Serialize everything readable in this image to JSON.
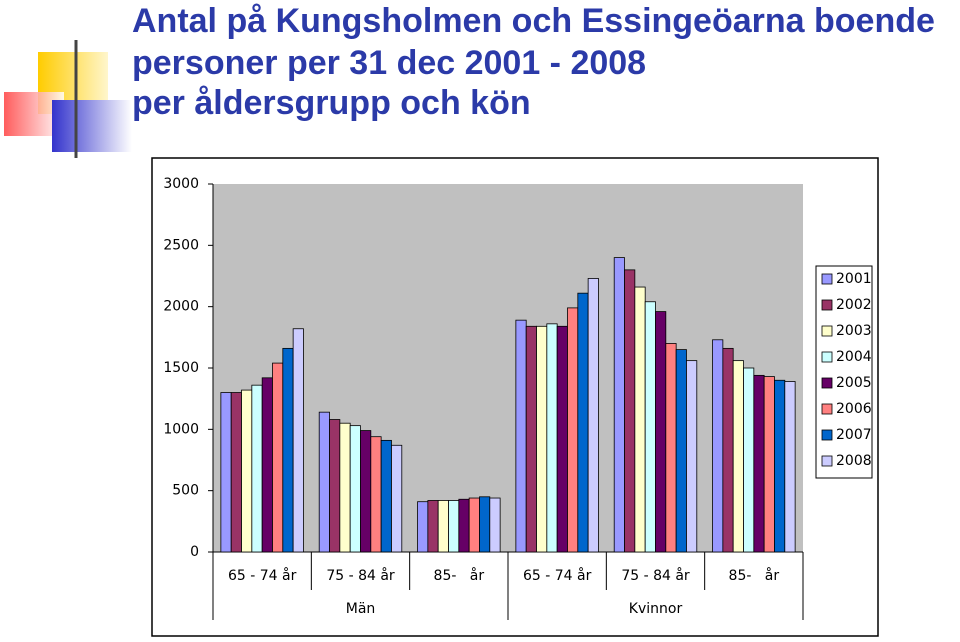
{
  "chart_data": {
    "type": "bar",
    "title": [
      "Antal på Kungsholmen och Essingeöarna boende",
      "personer per 31 dec 2001 - 2008",
      "per åldersgrupp och kön"
    ],
    "categories": [
      "65 - 74 år",
      "75 - 84 år",
      "85-   år",
      "65 - 74 år",
      "75 - 84 år",
      "85-   år"
    ],
    "category_groups": [
      {
        "label": "Män",
        "count": 3
      },
      {
        "label": "Kvinnor",
        "count": 3
      }
    ],
    "series": [
      {
        "name": "2001",
        "color": "#9999ff",
        "values": [
          1300,
          1140,
          410,
          1890,
          2400,
          1730
        ]
      },
      {
        "name": "2002",
        "color": "#993366",
        "values": [
          1300,
          1080,
          420,
          1840,
          2300,
          1660
        ]
      },
      {
        "name": "2003",
        "color": "#ffffcc",
        "values": [
          1320,
          1050,
          420,
          1840,
          2160,
          1560
        ]
      },
      {
        "name": "2004",
        "color": "#ccffff",
        "values": [
          1360,
          1030,
          420,
          1860,
          2040,
          1500
        ]
      },
      {
        "name": "2005",
        "color": "#660066",
        "values": [
          1420,
          990,
          430,
          1840,
          1960,
          1440
        ]
      },
      {
        "name": "2006",
        "color": "#ff8080",
        "values": [
          1540,
          940,
          440,
          1990,
          1700,
          1430
        ]
      },
      {
        "name": "2007",
        "color": "#0066cc",
        "values": [
          1660,
          910,
          450,
          2110,
          1650,
          1400
        ]
      },
      {
        "name": "2008",
        "color": "#ccccff",
        "values": [
          1820,
          870,
          440,
          2230,
          1560,
          1390
        ]
      }
    ],
    "ylim": [
      0,
      3000
    ],
    "yticks": [
      0,
      500,
      1000,
      1500,
      2000,
      2500,
      3000
    ],
    "grid": false,
    "legend": "right"
  }
}
